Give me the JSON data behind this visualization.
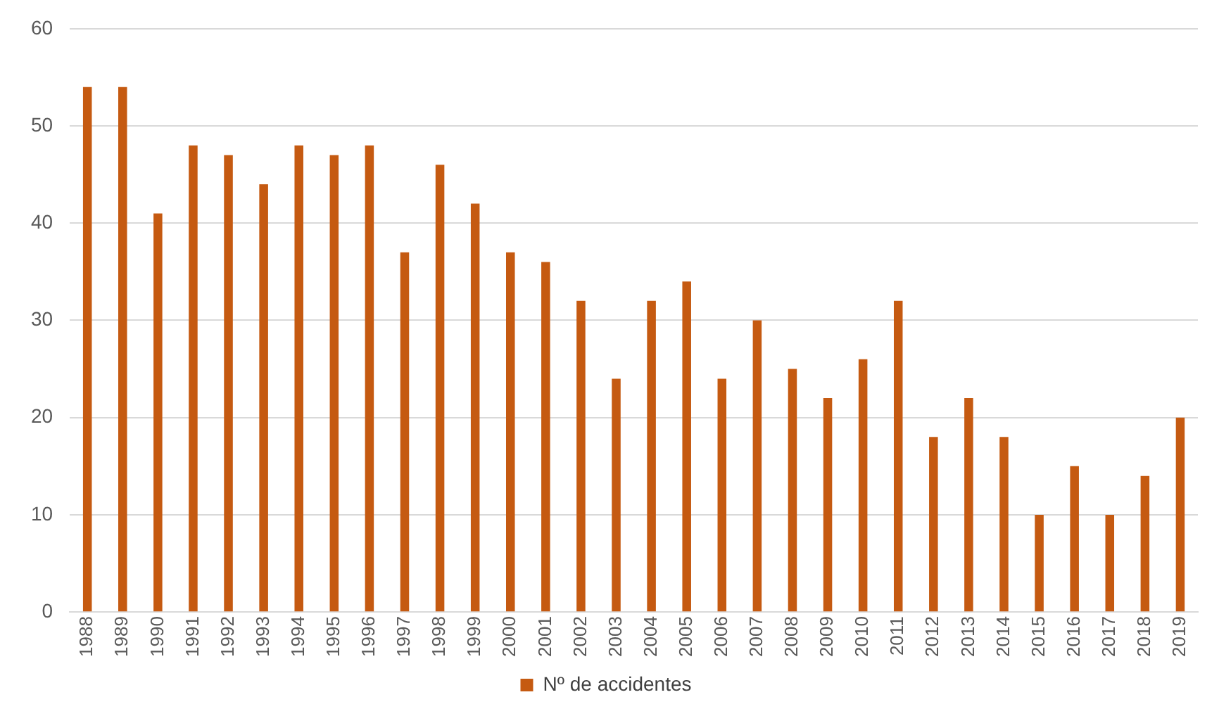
{
  "chart_data": {
    "type": "bar",
    "categories": [
      "1988",
      "1989",
      "1990",
      "1991",
      "1992",
      "1993",
      "1994",
      "1995",
      "1996",
      "1997",
      "1998",
      "1999",
      "2000",
      "2001",
      "2002",
      "2003",
      "2004",
      "2005",
      "2006",
      "2007",
      "2008",
      "2009",
      "2010",
      "2011",
      "2012",
      "2013",
      "2014",
      "2015",
      "2016",
      "2017",
      "2018",
      "2019"
    ],
    "series": [
      {
        "name": "Nº de accidentes",
        "color": "#c55a11",
        "values": [
          54,
          54,
          41,
          48,
          47,
          44,
          48,
          47,
          48,
          37,
          46,
          42,
          37,
          36,
          32,
          24,
          32,
          34,
          24,
          30,
          25,
          22,
          26,
          32,
          18,
          22,
          18,
          10,
          15,
          10,
          14,
          20
        ]
      }
    ],
    "ylim": [
      0,
      60
    ],
    "yticks": [
      0,
      10,
      20,
      30,
      40,
      50,
      60
    ],
    "grid": "y",
    "legend": "bottom"
  }
}
